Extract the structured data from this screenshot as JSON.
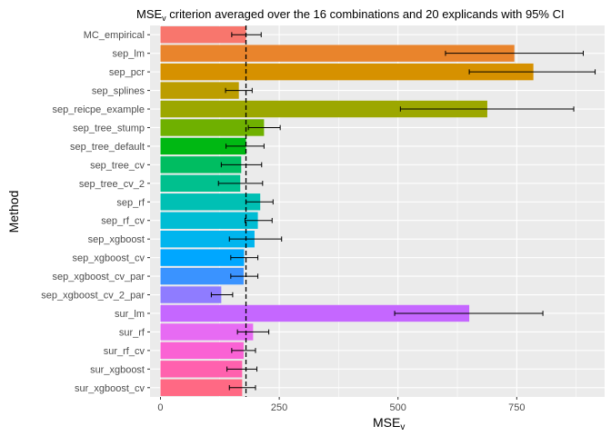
{
  "chart_data": {
    "type": "bar",
    "orientation": "horizontal",
    "title": {
      "prefix": "MSE",
      "subscript": "v",
      "suffix": " criterion averaged over the 16 combinations and 20 explicands with 95% CI"
    },
    "xlabel": {
      "main": "MSE",
      "subscript": "v"
    },
    "ylabel": "Method",
    "xlim": [
      -22,
      935
    ],
    "xticks": [
      0,
      250,
      500,
      750
    ],
    "grid": true,
    "reference_line": 180,
    "categories": [
      "MC_empirical",
      "sep_lm",
      "sep_pcr",
      "sep_splines",
      "sep_reicpe_example",
      "sep_tree_stump",
      "sep_tree_default",
      "sep_tree_cv",
      "sep_tree_cv_2",
      "sep_rf",
      "sep_rf_cv",
      "sep_xgboost",
      "sep_xgboost_cv",
      "sep_xgboost_cv_par",
      "sep_xgboost_cv_2_par",
      "sur_lm",
      "sur_rf",
      "sur_rf_cv",
      "sur_xgboost",
      "sur_xgboost_cv"
    ],
    "values": [
      180,
      745,
      785,
      165,
      688,
      218,
      180,
      170,
      168,
      210,
      205,
      198,
      176,
      175,
      128,
      650,
      195,
      175,
      172,
      172
    ],
    "ci_lower": [
      150,
      600,
      650,
      137,
      505,
      185,
      138,
      128,
      122,
      180,
      178,
      145,
      148,
      148,
      107,
      493,
      162,
      150,
      140,
      145
    ],
    "ci_upper": [
      212,
      890,
      915,
      193,
      870,
      252,
      218,
      213,
      215,
      237,
      235,
      255,
      205,
      205,
      152,
      805,
      228,
      200,
      203,
      200
    ],
    "colors": [
      "#F8766D",
      "#E9842C",
      "#D69100",
      "#BC9D00",
      "#9CA700",
      "#6FB000",
      "#00B813",
      "#00BD61",
      "#00C08E",
      "#00C0B4",
      "#00BDD4",
      "#00B5EE",
      "#00A7FF",
      "#3A93FF",
      "#8F7CFF",
      "#C567FF",
      "#E76BF3",
      "#FA62D4",
      "#FF61AE",
      "#FF6984"
    ]
  }
}
